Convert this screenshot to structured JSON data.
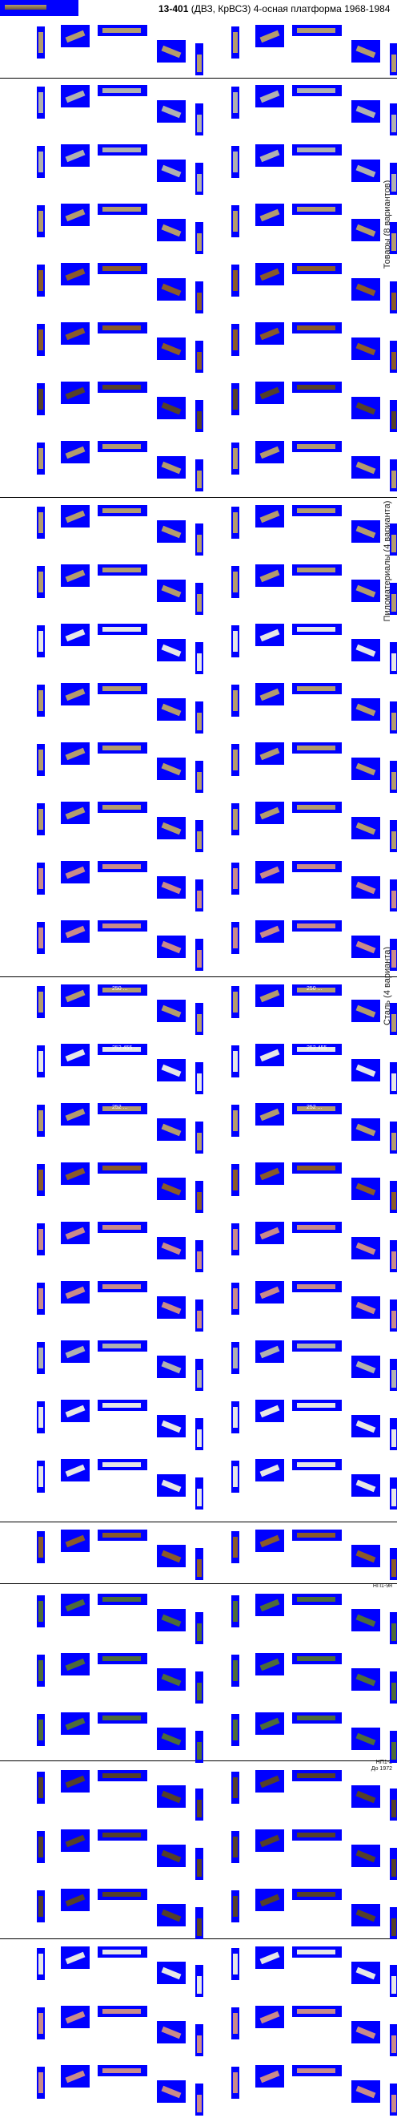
{
  "title": {
    "bold": "13-401",
    "rest": " (ДВЗ, КрВСЗ) 4-осная платформа 1968-1984"
  },
  "section_labels": [
    "Товары (8 вариантов)",
    "Пиломатериалы (4 варианта)",
    "Сталь (4 варианта)"
  ],
  "tags": [
    "НП1-9н",
    "НП1-8\nДо 1972"
  ],
  "car_labels": [
    "250 ...",
    "250 ...",
    "252 455 ...",
    "252 455 ...",
    "252 ...",
    "252 ..."
  ],
  "colors": {
    "sprite_bg": "#0000ff",
    "tan": "#b39b6e",
    "grey": "#b0b0b0",
    "brown": "#8a5a2a",
    "dark": "#55402a",
    "green": "#4e6b3a",
    "pink": "#c98a8a",
    "white": "#e6e6e6"
  }
}
